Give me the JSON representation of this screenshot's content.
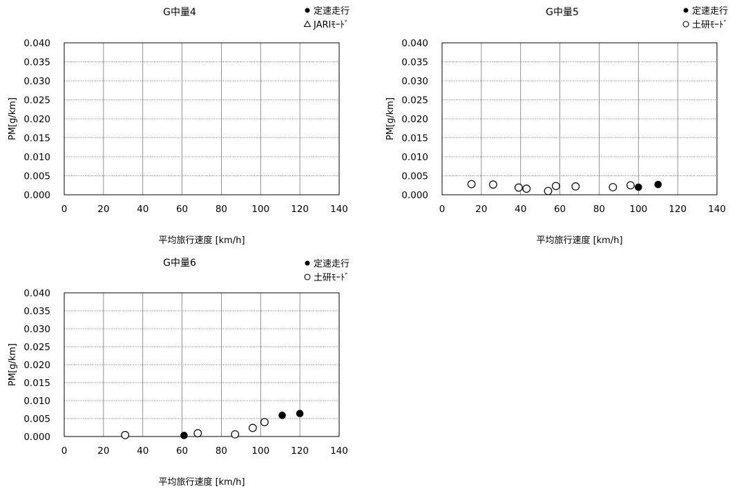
{
  "chart_data": [
    {
      "type": "scatter",
      "title": "G中量4",
      "xlabel": "平均旅行速度 [km/h]",
      "ylabel": "PM[g/km]",
      "xlim": [
        0,
        140
      ],
      "ylim": [
        0,
        0.04
      ],
      "x_ticks": [
        "0",
        "20",
        "40",
        "60",
        "80",
        "100",
        "120",
        "140"
      ],
      "y_ticks": [
        "0.000",
        "0.005",
        "0.010",
        "0.015",
        "0.020",
        "0.025",
        "0.030",
        "0.035",
        "0.040"
      ],
      "grid": true,
      "legend_position": "top-right",
      "series": [
        {
          "name": "定速走行",
          "marker": "filled-circle",
          "points": []
        },
        {
          "name": "JARIﾓｰﾄﾞ",
          "marker": "open-triangle",
          "points": []
        }
      ]
    },
    {
      "type": "scatter",
      "title": "G中量5",
      "xlabel": "平均旅行速度 [km/h]",
      "ylabel": "PM[g/km]",
      "xlim": [
        0,
        140
      ],
      "ylim": [
        0,
        0.04
      ],
      "x_ticks": [
        "0",
        "20",
        "40",
        "60",
        "80",
        "100",
        "120",
        "140"
      ],
      "y_ticks": [
        "0.000",
        "0.005",
        "0.010",
        "0.015",
        "0.020",
        "0.025",
        "0.030",
        "0.035",
        "0.040"
      ],
      "grid": true,
      "legend_position": "top-right",
      "series": [
        {
          "name": "定速走行",
          "marker": "filled-circle",
          "points": [
            [
              100,
              0.002
            ],
            [
              110,
              0.0027
            ]
          ]
        },
        {
          "name": "土研ﾓｰﾄﾞ",
          "marker": "open-circle",
          "points": [
            [
              15,
              0.0028
            ],
            [
              26,
              0.0027
            ],
            [
              39,
              0.0019
            ],
            [
              43,
              0.0016
            ],
            [
              54,
              0.001
            ],
            [
              58,
              0.0023
            ],
            [
              68,
              0.0022
            ],
            [
              87,
              0.002
            ],
            [
              96,
              0.0025
            ]
          ]
        }
      ]
    },
    {
      "type": "scatter",
      "title": "G中量6",
      "xlabel": "平均旅行速度 [km/h]",
      "ylabel": "PM[g/km]",
      "xlim": [
        0,
        140
      ],
      "ylim": [
        0,
        0.04
      ],
      "x_ticks": [
        "0",
        "20",
        "40",
        "60",
        "80",
        "100",
        "120",
        "140"
      ],
      "y_ticks": [
        "0.000",
        "0.005",
        "0.010",
        "0.015",
        "0.020",
        "0.025",
        "0.030",
        "0.035",
        "0.040"
      ],
      "grid": true,
      "legend_position": "top-right",
      "series": [
        {
          "name": "定速走行",
          "marker": "filled-circle",
          "points": [
            [
              61,
              0.0003
            ],
            [
              111,
              0.0059
            ],
            [
              120,
              0.0064
            ]
          ]
        },
        {
          "name": "土研ﾓｰﾄﾞ",
          "marker": "open-circle",
          "points": [
            [
              31,
              0.0004
            ],
            [
              68,
              0.0009
            ],
            [
              87,
              0.0006
            ],
            [
              96,
              0.0024
            ],
            [
              102,
              0.004
            ]
          ]
        }
      ]
    }
  ]
}
